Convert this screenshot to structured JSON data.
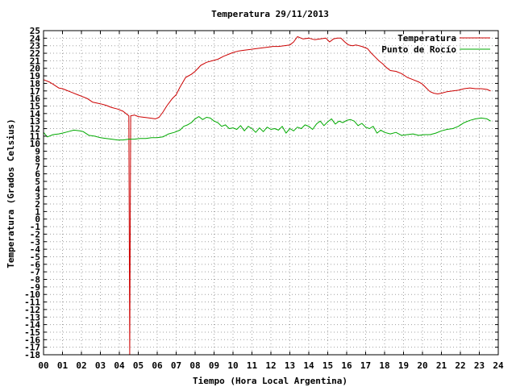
{
  "chart_data": {
    "type": "line",
    "title": "Temperatura 29/11/2013",
    "xlabel": "Tiempo (Hora Local Argentina)",
    "ylabel": "Temperatura (Grados Celsius)",
    "xlim": [
      0,
      24
    ],
    "ylim": [
      -18,
      25
    ],
    "grid": true,
    "legend_position": "top-right",
    "x_tick_labels": [
      "00",
      "01",
      "02",
      "03",
      "04",
      "05",
      "06",
      "07",
      "08",
      "09",
      "10",
      "11",
      "12",
      "13",
      "14",
      "15",
      "16",
      "17",
      "18",
      "19",
      "20",
      "21",
      "22",
      "23",
      "24"
    ],
    "y_ticks": [
      -18,
      -17,
      -16,
      -15,
      -14,
      -13,
      -12,
      -11,
      -10,
      -9,
      -8,
      -7,
      -6,
      -5,
      -4,
      -3,
      -2,
      -1,
      0,
      1,
      2,
      3,
      4,
      5,
      6,
      7,
      8,
      9,
      10,
      11,
      12,
      13,
      14,
      15,
      16,
      17,
      18,
      19,
      20,
      21,
      22,
      23,
      24,
      25
    ],
    "series": [
      {
        "name": "Temperatura",
        "color": "#cc0000",
        "x": [
          0.0,
          0.3,
          0.5,
          0.8,
          1.0,
          1.2,
          1.5,
          1.8,
          2.0,
          2.3,
          2.6,
          3.0,
          3.3,
          3.6,
          3.9,
          4.2,
          4.4,
          4.5,
          4.55,
          4.6,
          4.8,
          5.0,
          5.3,
          5.6,
          5.9,
          6.1,
          6.3,
          6.5,
          6.8,
          7.0,
          7.2,
          7.5,
          7.8,
          8.0,
          8.3,
          8.6,
          8.9,
          9.2,
          9.5,
          9.8,
          10.0,
          10.3,
          10.6,
          10.9,
          11.2,
          11.5,
          11.8,
          12.1,
          12.4,
          12.7,
          13.0,
          13.2,
          13.4,
          13.5,
          13.7,
          14.0,
          14.3,
          14.6,
          14.9,
          15.1,
          15.3,
          15.5,
          15.7,
          15.9,
          16.1,
          16.3,
          16.5,
          16.8,
          17.1,
          17.3,
          17.5,
          17.7,
          17.9,
          18.1,
          18.3,
          18.6,
          18.9,
          19.2,
          19.5,
          19.8,
          20.0,
          20.2,
          20.4,
          20.6,
          20.8,
          21.0,
          21.3,
          21.6,
          21.9,
          22.2,
          22.5,
          22.8,
          23.1,
          23.4,
          23.6
        ],
        "y": [
          18.5,
          18.2,
          17.9,
          17.4,
          17.3,
          17.1,
          16.8,
          16.5,
          16.3,
          16.0,
          15.5,
          15.3,
          15.1,
          14.8,
          14.6,
          14.3,
          13.9,
          13.7,
          -18.0,
          13.7,
          13.8,
          13.6,
          13.5,
          13.4,
          13.3,
          13.5,
          14.2,
          15.0,
          16.0,
          16.5,
          17.5,
          18.8,
          19.2,
          19.6,
          20.4,
          20.8,
          21.0,
          21.2,
          21.6,
          21.9,
          22.1,
          22.3,
          22.4,
          22.5,
          22.6,
          22.7,
          22.8,
          22.9,
          22.9,
          23.0,
          23.1,
          23.5,
          24.2,
          24.1,
          23.9,
          24.0,
          23.8,
          23.9,
          24.0,
          23.5,
          23.9,
          24.0,
          24.0,
          23.5,
          23.1,
          23.0,
          23.1,
          22.9,
          22.6,
          22.0,
          21.5,
          21.0,
          20.6,
          20.1,
          19.7,
          19.6,
          19.3,
          18.8,
          18.5,
          18.2,
          17.9,
          17.4,
          16.9,
          16.7,
          16.6,
          16.7,
          16.9,
          17.0,
          17.1,
          17.3,
          17.4,
          17.3,
          17.3,
          17.2,
          17.0
        ]
      },
      {
        "name": "Punto de Rocío",
        "color": "#00aa00",
        "x": [
          0.0,
          0.2,
          0.5,
          0.8,
          1.0,
          1.3,
          1.6,
          1.9,
          2.1,
          2.4,
          2.7,
          3.0,
          3.3,
          3.6,
          3.9,
          4.2,
          4.5,
          4.8,
          5.1,
          5.4,
          5.7,
          6.0,
          6.3,
          6.6,
          6.9,
          7.2,
          7.4,
          7.6,
          7.8,
          8.0,
          8.2,
          8.4,
          8.6,
          8.8,
          9.0,
          9.2,
          9.4,
          9.6,
          9.8,
          10.0,
          10.2,
          10.4,
          10.6,
          10.8,
          11.0,
          11.2,
          11.4,
          11.6,
          11.8,
          12.0,
          12.2,
          12.4,
          12.6,
          12.8,
          13.0,
          13.2,
          13.4,
          13.6,
          13.8,
          14.0,
          14.2,
          14.4,
          14.6,
          14.8,
          15.0,
          15.2,
          15.4,
          15.6,
          15.8,
          16.0,
          16.2,
          16.4,
          16.6,
          16.8,
          17.0,
          17.2,
          17.4,
          17.6,
          17.8,
          18.0,
          18.3,
          18.6,
          18.9,
          19.2,
          19.5,
          19.8,
          20.1,
          20.4,
          20.7,
          21.0,
          21.3,
          21.6,
          21.9,
          22.2,
          22.5,
          22.8,
          23.1,
          23.4,
          23.6
        ],
        "y": [
          11.5,
          10.9,
          11.2,
          11.3,
          11.4,
          11.6,
          11.8,
          11.7,
          11.6,
          11.1,
          11.0,
          10.8,
          10.7,
          10.6,
          10.5,
          10.5,
          10.6,
          10.6,
          10.7,
          10.7,
          10.8,
          10.8,
          10.9,
          11.3,
          11.5,
          11.8,
          12.3,
          12.5,
          12.8,
          13.3,
          13.6,
          13.2,
          13.5,
          13.4,
          13.0,
          12.8,
          12.3,
          12.5,
          12.0,
          12.1,
          11.9,
          12.4,
          11.7,
          12.3,
          12.0,
          11.5,
          12.1,
          11.6,
          12.2,
          11.9,
          12.0,
          11.8,
          12.3,
          11.4,
          12.0,
          11.7,
          12.2,
          12.0,
          12.5,
          12.3,
          11.9,
          12.6,
          13.0,
          12.4,
          12.9,
          13.3,
          12.6,
          13.0,
          12.8,
          13.1,
          13.2,
          13.0,
          12.4,
          12.7,
          12.2,
          12.0,
          12.3,
          11.4,
          11.8,
          11.5,
          11.3,
          11.5,
          11.1,
          11.2,
          11.3,
          11.1,
          11.2,
          11.2,
          11.4,
          11.7,
          11.9,
          12.0,
          12.3,
          12.8,
          13.1,
          13.3,
          13.4,
          13.3,
          13.0
        ]
      }
    ]
  }
}
